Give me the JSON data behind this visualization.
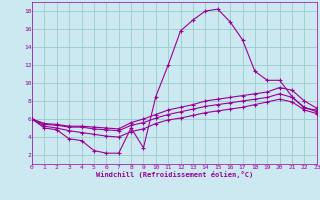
{
  "xlabel": "Windchill (Refroidissement éolien,°C)",
  "bg_color": "#cce8f0",
  "grid_color": "#99cccc",
  "line_color": "#990099",
  "x": [
    0,
    1,
    2,
    3,
    4,
    5,
    6,
    7,
    8,
    9,
    10,
    11,
    12,
    13,
    14,
    15,
    16,
    17,
    18,
    19,
    20,
    21,
    22,
    23
  ],
  "line1": [
    6.0,
    5.0,
    4.8,
    3.8,
    3.6,
    2.5,
    2.2,
    2.2,
    5.0,
    2.8,
    8.5,
    12.0,
    15.8,
    17.0,
    18.0,
    18.2,
    16.8,
    14.8,
    11.3,
    10.3,
    10.3,
    8.5,
    7.2,
    7.0
  ],
  "line2": [
    6.0,
    5.5,
    5.4,
    5.2,
    5.2,
    5.1,
    5.0,
    4.9,
    5.6,
    6.0,
    6.5,
    7.0,
    7.3,
    7.6,
    8.0,
    8.2,
    8.4,
    8.6,
    8.8,
    9.0,
    9.5,
    9.2,
    8.0,
    7.2
  ],
  "line3": [
    6.0,
    5.4,
    5.3,
    5.1,
    5.1,
    4.9,
    4.8,
    4.7,
    5.3,
    5.6,
    6.1,
    6.5,
    6.8,
    7.1,
    7.4,
    7.6,
    7.8,
    8.0,
    8.2,
    8.4,
    8.8,
    8.4,
    7.3,
    6.8
  ],
  "line4": [
    6.0,
    5.2,
    5.0,
    4.7,
    4.5,
    4.3,
    4.1,
    4.0,
    4.6,
    4.9,
    5.5,
    5.9,
    6.1,
    6.4,
    6.7,
    6.9,
    7.1,
    7.3,
    7.6,
    7.9,
    8.2,
    7.9,
    7.0,
    6.6
  ],
  "xlim": [
    0,
    23
  ],
  "ylim": [
    1.0,
    19.0
  ],
  "yticks": [
    2,
    4,
    6,
    8,
    10,
    12,
    14,
    16,
    18
  ],
  "xticks": [
    0,
    1,
    2,
    3,
    4,
    5,
    6,
    7,
    8,
    9,
    10,
    11,
    12,
    13,
    14,
    15,
    16,
    17,
    18,
    19,
    20,
    21,
    22,
    23
  ]
}
